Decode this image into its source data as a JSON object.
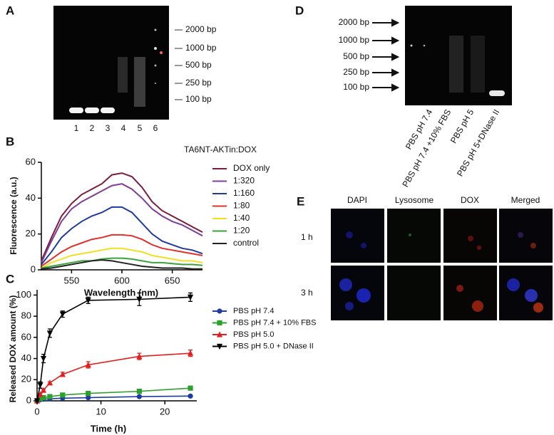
{
  "gel_a": {
    "label": "A",
    "lanes": [
      "1",
      "2",
      "3",
      "4",
      "5",
      "6"
    ],
    "markers": [
      "2000 bp",
      "1000 bp",
      "500 bp",
      "250 bp",
      "100 bp"
    ]
  },
  "gel_d": {
    "label": "D",
    "markers": [
      "2000 bp",
      "1000 bp",
      "500 bp",
      "250 bp",
      "100 bp"
    ],
    "lanes": [
      "PBS pH 7.4",
      "PBS pH 7.4 +10% FBS",
      "PBS pH 5",
      "PBS pH 5+DNase II"
    ]
  },
  "microscopy": {
    "label": "E",
    "columns": [
      "DAPI",
      "Lysosome",
      "DOX",
      "Merged"
    ],
    "rows": [
      "1 h",
      "3 h"
    ]
  },
  "chart_data": [
    {
      "type": "line",
      "panel": "B",
      "xlabel": "Wavelength (nm)",
      "ylabel": "Fluorescence (a.u.)",
      "legend_title": "TA6NT-AKTin:DOX",
      "x": [
        520,
        530,
        540,
        550,
        560,
        570,
        580,
        590,
        600,
        610,
        620,
        630,
        640,
        650,
        660,
        670,
        680
      ],
      "xlim": [
        520,
        680
      ],
      "xticks": [
        550,
        600,
        650
      ],
      "ylim": [
        0,
        60
      ],
      "yticks": [
        0,
        20,
        40,
        60
      ],
      "series": [
        {
          "name": "DOX only",
          "color": "#7b1c3c",
          "values": [
            5,
            18,
            30,
            37,
            42,
            45,
            48,
            53,
            54,
            52,
            46,
            38,
            33,
            30,
            27,
            24,
            21
          ]
        },
        {
          "name": "1:320",
          "color": "#7d3f98",
          "values": [
            4,
            16,
            27,
            34,
            38,
            41,
            44,
            47,
            48,
            45,
            40,
            34,
            30,
            27,
            25,
            22,
            19
          ]
        },
        {
          "name": "1:160",
          "color": "#1f3b9f",
          "values": [
            3,
            10,
            18,
            23,
            27,
            30,
            32,
            35,
            35,
            32,
            26,
            20,
            16,
            14,
            12,
            11,
            9
          ]
        },
        {
          "name": "1:80",
          "color": "#e0302a",
          "values": [
            2,
            6,
            10,
            13,
            15,
            17,
            18,
            19.5,
            19.5,
            19,
            17,
            14,
            12,
            11,
            10,
            9,
            8
          ]
        },
        {
          "name": "1:40",
          "color": "#f0e020",
          "values": [
            1,
            4,
            6,
            8,
            9,
            10,
            11,
            12,
            12,
            11,
            10,
            8,
            7,
            6,
            5,
            5,
            4
          ]
        },
        {
          "name": "1:20",
          "color": "#3aa33a",
          "values": [
            1,
            2,
            3,
            4,
            5,
            5,
            6,
            6.5,
            6.5,
            6,
            5,
            4,
            4,
            3.5,
            3,
            3,
            2.5
          ]
        },
        {
          "name": "control",
          "color": "#222222",
          "values": [
            0.5,
            1,
            2,
            3,
            4,
            5,
            5.5,
            5,
            4,
            3,
            2,
            1.5,
            1,
            1,
            1,
            0.5,
            0.5
          ]
        }
      ]
    },
    {
      "type": "line",
      "panel": "C",
      "xlabel": "Time (h)",
      "ylabel": "Released DOX amount (%)",
      "x": [
        0,
        0.5,
        1,
        2,
        4,
        8,
        16,
        24
      ],
      "xlim": [
        0,
        25
      ],
      "xticks": [
        0,
        10,
        20
      ],
      "ylim": [
        0,
        105
      ],
      "yticks": [
        0,
        20,
        40,
        60,
        80,
        100
      ],
      "series": [
        {
          "name": "PBS pH 7.4",
          "color": "#1f3ba0",
          "marker": "circle",
          "values": [
            0,
            1,
            1.5,
            2,
            2.5,
            3,
            4,
            4.5
          ],
          "errors": [
            0,
            0.5,
            0.5,
            0.5,
            0.5,
            0.5,
            0.5,
            0.5
          ]
        },
        {
          "name": "PBS pH 7.4 + 10% FBS",
          "color": "#2ca02c",
          "marker": "square",
          "values": [
            0,
            2,
            3,
            4,
            5.5,
            7,
            9,
            12
          ],
          "errors": [
            0,
            0.5,
            0.5,
            0.5,
            0.5,
            1,
            1,
            1
          ]
        },
        {
          "name": "PBS pH 5.0",
          "color": "#e02020",
          "marker": "triangle",
          "values": [
            0,
            6,
            10,
            17,
            25,
            34,
            42,
            45
          ],
          "errors": [
            0,
            1,
            1,
            1,
            2,
            3,
            3,
            3
          ]
        },
        {
          "name": "PBS pH 5.0 + DNase II",
          "color": "#000000",
          "marker": "down",
          "values": [
            0,
            15,
            40,
            64,
            82,
            95,
            96,
            98
          ],
          "errors": [
            0,
            3,
            4,
            4,
            3,
            3,
            6,
            4
          ]
        }
      ]
    }
  ]
}
